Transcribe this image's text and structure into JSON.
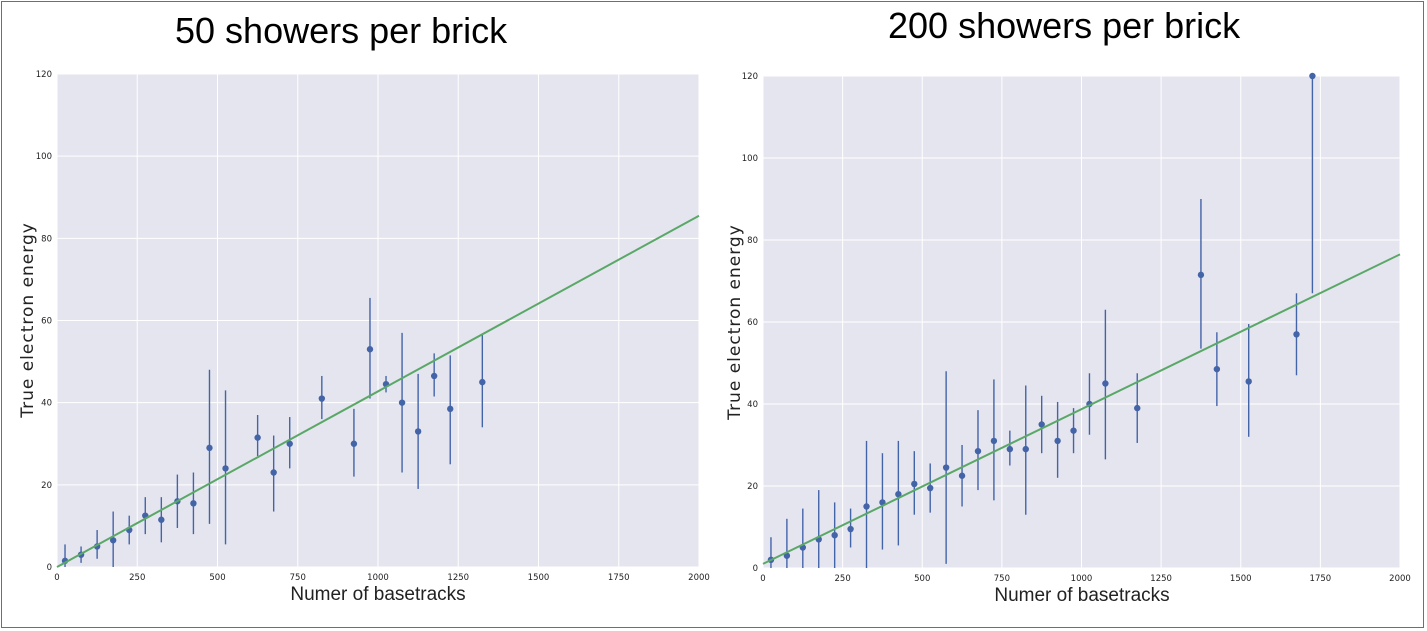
{
  "chart_data": [
    {
      "type": "scatter",
      "title": "50 showers per brick",
      "xlabel": "Numer of basetracks",
      "ylabel": "True electron energy",
      "xlim": [
        0,
        2000
      ],
      "ylim": [
        0,
        120
      ],
      "xticks": [
        "0",
        "250",
        "500",
        "750",
        "1000",
        "1250",
        "1500",
        "1750",
        "2000"
      ],
      "yticks": [
        "0",
        "20",
        "40",
        "60",
        "80",
        "100",
        "120"
      ],
      "grid": true,
      "colors": {
        "background": "#e5e5ef",
        "points": "#4464a8",
        "fit": "#5aa867",
        "grid": "#ffffff"
      },
      "fit_line": {
        "x": [
          0,
          2000
        ],
        "y": [
          0,
          85.5
        ]
      },
      "points": [
        {
          "x": 25,
          "y": 1.5,
          "lo": 0,
          "hi": 5.5
        },
        {
          "x": 75,
          "y": 3,
          "lo": 1,
          "hi": 5
        },
        {
          "x": 125,
          "y": 5,
          "lo": 2,
          "hi": 9
        },
        {
          "x": 175,
          "y": 6.5,
          "lo": 0,
          "hi": 13.5
        },
        {
          "x": 225,
          "y": 9,
          "lo": 5.5,
          "hi": 12.5
        },
        {
          "x": 275,
          "y": 12.5,
          "lo": 8,
          "hi": 17
        },
        {
          "x": 325,
          "y": 11.5,
          "lo": 6,
          "hi": 17
        },
        {
          "x": 375,
          "y": 16,
          "lo": 9.5,
          "hi": 22.5
        },
        {
          "x": 425,
          "y": 15.5,
          "lo": 8,
          "hi": 23
        },
        {
          "x": 475,
          "y": 29,
          "lo": 10.5,
          "hi": 48
        },
        {
          "x": 525,
          "y": 24,
          "lo": 5.5,
          "hi": 43
        },
        {
          "x": 625,
          "y": 31.5,
          "lo": 27,
          "hi": 37
        },
        {
          "x": 675,
          "y": 23,
          "lo": 13.5,
          "hi": 32
        },
        {
          "x": 725,
          "y": 30,
          "lo": 24,
          "hi": 36.5
        },
        {
          "x": 825,
          "y": 41,
          "lo": 36,
          "hi": 46.5
        },
        {
          "x": 925,
          "y": 30,
          "lo": 22,
          "hi": 38.5
        },
        {
          "x": 975,
          "y": 53,
          "lo": 41,
          "hi": 65.5
        },
        {
          "x": 1025,
          "y": 44.5,
          "lo": 42.5,
          "hi": 46.5
        },
        {
          "x": 1075,
          "y": 40,
          "lo": 23,
          "hi": 57
        },
        {
          "x": 1125,
          "y": 33,
          "lo": 19,
          "hi": 47
        },
        {
          "x": 1175,
          "y": 46.5,
          "lo": 41.5,
          "hi": 52
        },
        {
          "x": 1225,
          "y": 38.5,
          "lo": 25,
          "hi": 51.5
        },
        {
          "x": 1325,
          "y": 45,
          "lo": 34,
          "hi": 56.5
        }
      ]
    },
    {
      "type": "scatter",
      "title": "200 showers per brick",
      "xlabel": "Numer of basetracks",
      "ylabel": "True electron energy",
      "xlim": [
        0,
        2000
      ],
      "ylim": [
        0,
        120
      ],
      "xticks": [
        "0",
        "250",
        "500",
        "750",
        "1000",
        "1250",
        "1500",
        "1750",
        "2000"
      ],
      "yticks": [
        "0",
        "20",
        "40",
        "60",
        "80",
        "100",
        "120"
      ],
      "grid": true,
      "colors": {
        "background": "#e5e5ef",
        "points": "#4464a8",
        "fit": "#5aa867",
        "grid": "#ffffff"
      },
      "fit_line": {
        "x": [
          0,
          2000
        ],
        "y": [
          1,
          76.5
        ]
      },
      "points": [
        {
          "x": 25,
          "y": 2,
          "lo": 0,
          "hi": 7.5
        },
        {
          "x": 75,
          "y": 3,
          "lo": 0,
          "hi": 12
        },
        {
          "x": 125,
          "y": 5,
          "lo": 0,
          "hi": 14.5
        },
        {
          "x": 175,
          "y": 7,
          "lo": 0,
          "hi": 19
        },
        {
          "x": 225,
          "y": 8,
          "lo": 0,
          "hi": 16
        },
        {
          "x": 275,
          "y": 9.5,
          "lo": 5,
          "hi": 14.5
        },
        {
          "x": 325,
          "y": 15,
          "lo": 0,
          "hi": 31
        },
        {
          "x": 375,
          "y": 16,
          "lo": 4.5,
          "hi": 28
        },
        {
          "x": 425,
          "y": 18,
          "lo": 5.5,
          "hi": 31
        },
        {
          "x": 475,
          "y": 20.5,
          "lo": 13,
          "hi": 28.5
        },
        {
          "x": 525,
          "y": 19.5,
          "lo": 13.5,
          "hi": 25.5
        },
        {
          "x": 575,
          "y": 24.5,
          "lo": 1,
          "hi": 48
        },
        {
          "x": 625,
          "y": 22.5,
          "lo": 15,
          "hi": 30
        },
        {
          "x": 675,
          "y": 28.5,
          "lo": 19,
          "hi": 38.5
        },
        {
          "x": 725,
          "y": 31,
          "lo": 16.5,
          "hi": 46
        },
        {
          "x": 775,
          "y": 29,
          "lo": 25,
          "hi": 33.5
        },
        {
          "x": 825,
          "y": 29,
          "lo": 13,
          "hi": 44.5
        },
        {
          "x": 875,
          "y": 35,
          "lo": 28,
          "hi": 42
        },
        {
          "x": 925,
          "y": 31,
          "lo": 22,
          "hi": 40.5
        },
        {
          "x": 975,
          "y": 33.5,
          "lo": 28,
          "hi": 39
        },
        {
          "x": 1025,
          "y": 40,
          "lo": 32.5,
          "hi": 47.5
        },
        {
          "x": 1075,
          "y": 45,
          "lo": 26.5,
          "hi": 63
        },
        {
          "x": 1175,
          "y": 39,
          "lo": 30.5,
          "hi": 47.5
        },
        {
          "x": 1375,
          "y": 71.5,
          "lo": 53.5,
          "hi": 90
        },
        {
          "x": 1425,
          "y": 48.5,
          "lo": 39.5,
          "hi": 57.5
        },
        {
          "x": 1525,
          "y": 45.5,
          "lo": 32,
          "hi": 59.5
        },
        {
          "x": 1675,
          "y": 57,
          "lo": 47,
          "hi": 67
        },
        {
          "x": 1725,
          "y": 120,
          "lo": 67,
          "hi": 120
        }
      ]
    }
  ]
}
